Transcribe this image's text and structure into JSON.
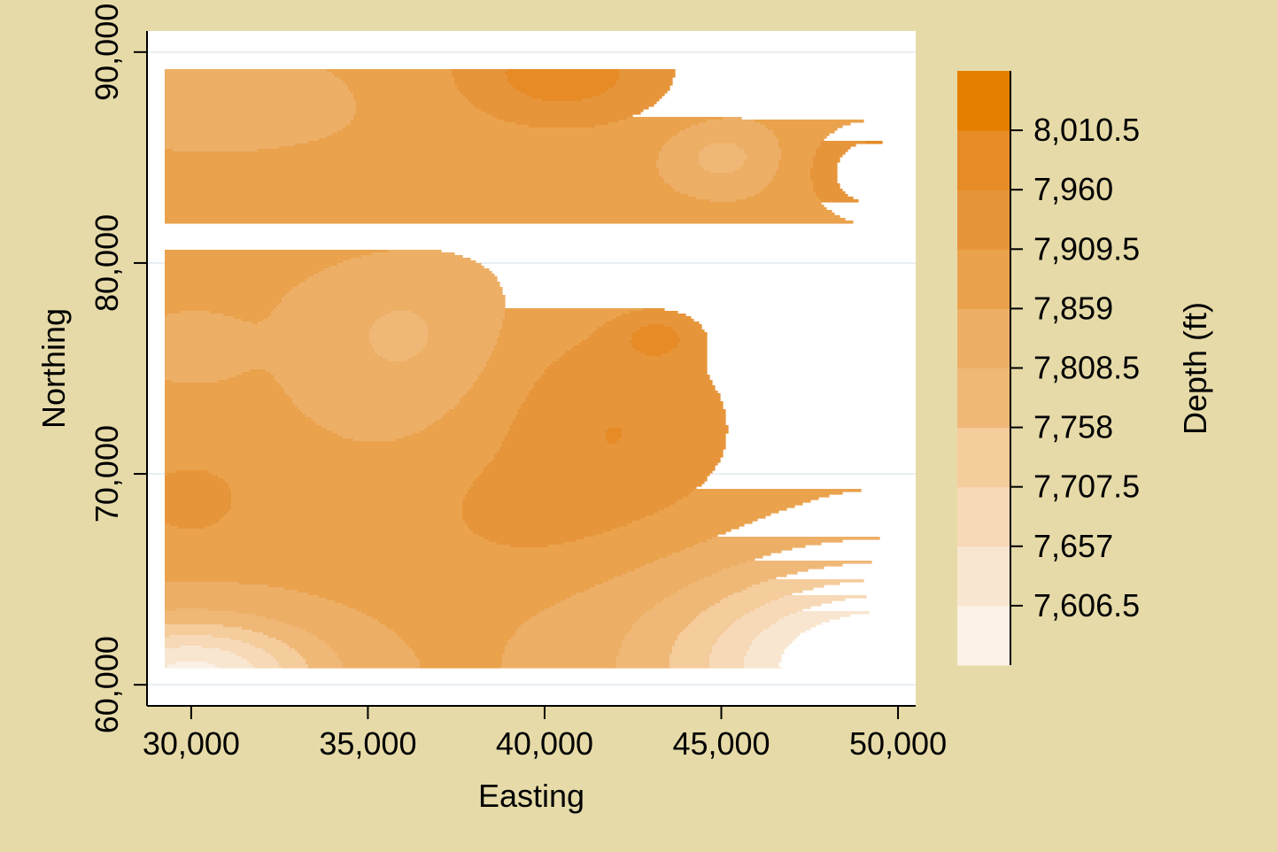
{
  "chart_data": {
    "type": "contour",
    "title": "",
    "xlabel": "Easting",
    "ylabel": "Northing",
    "colorbar_label": "Depth (ft)",
    "xlim": [
      28750,
      50500
    ],
    "ylim": [
      59000,
      91000
    ],
    "x_ticks": [
      30000,
      35000,
      40000,
      45000,
      50000
    ],
    "x_tick_labels": [
      "30,000",
      "35,000",
      "40,000",
      "45,000",
      "50,000"
    ],
    "y_ticks": [
      60000,
      70000,
      80000,
      90000
    ],
    "y_tick_labels": [
      "60,000",
      "70,000",
      "80,000",
      "90,000"
    ],
    "data_extent": {
      "x": [
        29250,
        49600
      ],
      "y": [
        60800,
        89200
      ]
    },
    "grid": true,
    "levels": [
      7556,
      7606.5,
      7657,
      7707.5,
      7758,
      7808.5,
      7859,
      7909.5,
      7960,
      8010.5,
      8061
    ],
    "level_labels": [
      "7,606.5",
      "7,657",
      "7,707.5",
      "7,758",
      "7,808.5",
      "7,859",
      "7,909.5",
      "7,960",
      "8,010.5"
    ],
    "level_colors": [
      "#fbf1e6",
      "#f9e6d0",
      "#f7d9b7",
      "#f5cc9c",
      "#f0b877",
      "#edaf66",
      "#eaa24d",
      "#e7953a",
      "#e68b26",
      "#e47f00"
    ],
    "field": {
      "base": 7870,
      "features": [
        {
          "x": 40500,
          "y": 89000,
          "sx": 3000,
          "sy": 2500,
          "a": 120
        },
        {
          "x": 49300,
          "y": 84300,
          "sx": 1600,
          "sy": 2200,
          "a": 140
        },
        {
          "x": 43200,
          "y": 76500,
          "sx": 1100,
          "sy": 1100,
          "a": 80
        },
        {
          "x": 42000,
          "y": 72000,
          "sx": 3500,
          "sy": 5000,
          "a": 90
        },
        {
          "x": 39000,
          "y": 68000,
          "sx": 2500,
          "sy": 2500,
          "a": 40
        },
        {
          "x": 45000,
          "y": 85000,
          "sx": 1400,
          "sy": 1500,
          "a": -80
        },
        {
          "x": 30000,
          "y": 68800,
          "sx": 1800,
          "sy": 2200,
          "a": 60
        },
        {
          "x": 36000,
          "y": 76500,
          "sx": 2800,
          "sy": 4000,
          "a": -70
        },
        {
          "x": 30000,
          "y": 76000,
          "sx": 1400,
          "sy": 1500,
          "a": -40
        },
        {
          "x": 30000,
          "y": 60500,
          "sx": 3500,
          "sy": 2500,
          "a": -280
        },
        {
          "x": 50000,
          "y": 61000,
          "sx": 6000,
          "sy": 4500,
          "a": -360
        },
        {
          "x": 31000,
          "y": 87500,
          "sx": 4000,
          "sy": 2500,
          "a": -30
        },
        {
          "x": 34000,
          "y": 82000,
          "sx": 5000,
          "sy": 2500,
          "a": 20
        }
      ]
    }
  }
}
